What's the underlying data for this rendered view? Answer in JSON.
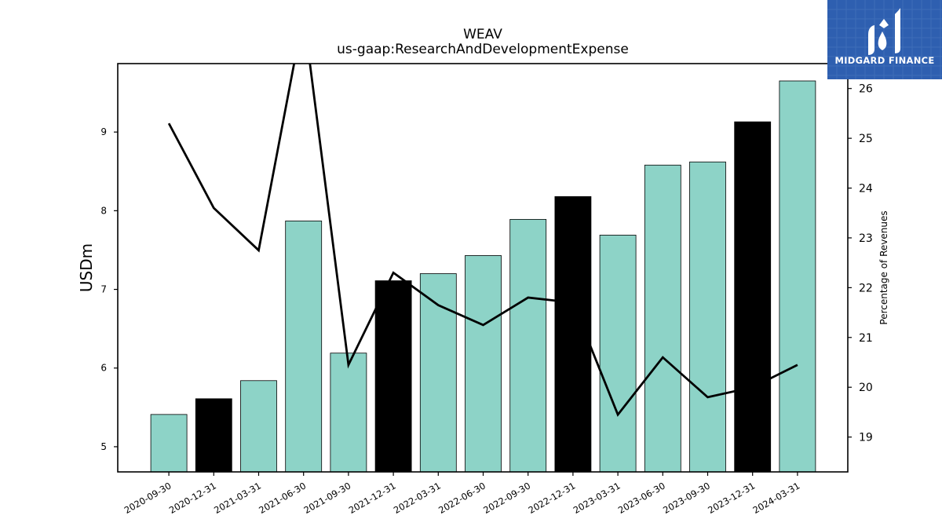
{
  "chart_data": {
    "type": "bar",
    "title": "WEAV",
    "subtitle": "us-gaap:ResearchAndDevelopmentExpense",
    "ylabel": "USDm",
    "y2label": "Percentage of Revenues",
    "categories": [
      "2020-09-30",
      "2020-12-31",
      "2021-03-31",
      "2021-06-30",
      "2021-09-30",
      "2021-12-31",
      "2022-03-31",
      "2022-06-30",
      "2022-09-30",
      "2022-12-31",
      "2023-03-31",
      "2023-06-30",
      "2023-09-30",
      "2023-12-31",
      "2024-03-31"
    ],
    "series": [
      {
        "type": "bar",
        "values": [
          5.41,
          5.61,
          5.84,
          7.87,
          6.19,
          7.11,
          7.2,
          7.43,
          7.89,
          8.18,
          7.69,
          8.58,
          8.62,
          9.13,
          9.65
        ],
        "highlight": [
          false,
          true,
          false,
          false,
          false,
          true,
          false,
          false,
          false,
          true,
          false,
          false,
          false,
          true,
          false
        ]
      },
      {
        "type": "line",
        "axis": "right",
        "values": [
          25.3,
          23.6,
          22.75,
          27.5,
          20.45,
          22.3,
          21.65,
          21.25,
          21.8,
          21.7,
          19.45,
          20.6,
          19.8,
          20.0,
          20.45
        ]
      }
    ],
    "ylim": [
      4.68,
      9.87
    ],
    "y2lim": [
      18.3,
      26.5
    ],
    "yticks": [
      5,
      6,
      7,
      8,
      9
    ],
    "y2ticks": [
      19,
      20,
      21,
      22,
      23,
      24,
      25,
      26
    ],
    "colors": {
      "bar": "#8dd3c7",
      "bar_highlight": "#000000",
      "line": "#000000"
    }
  },
  "watermark": {
    "text": "MIDGARD FINANCE",
    "color": "#2e5fb0"
  }
}
